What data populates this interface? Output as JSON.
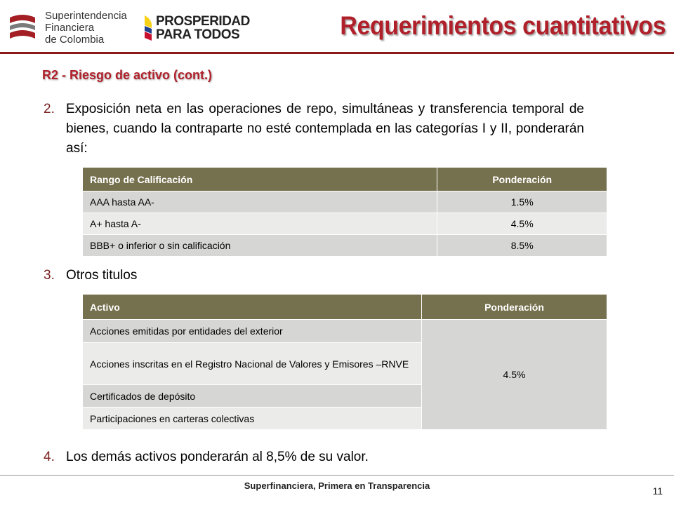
{
  "header": {
    "sfc_logo_text": [
      "Superintendencia",
      "Financiera",
      "de Colombia"
    ],
    "prosperidad_text": [
      "PROSPERIDAD",
      "PARA TODOS"
    ],
    "title": "Requerimientos cuantitativos",
    "colors": {
      "title": "#b0202a",
      "rule": "#8b1a1a",
      "table_header": "#75704d"
    }
  },
  "subtitle": "R2 - Riesgo de activo (cont.)",
  "items": [
    {
      "num": "2.",
      "text": "Exposición neta en las operaciones de repo, simultáneas y transferencia temporal de bienes, cuando la contraparte no esté contemplada en las categorías I y II, ponderarán así:"
    },
    {
      "num": "3.",
      "text": "Otros titulos"
    },
    {
      "num": "4.",
      "text": "Los demás activos ponderarán al 8,5% de su valor."
    }
  ],
  "table_rating": {
    "headers": [
      "Rango de Calificación",
      "Ponderación"
    ],
    "rows": [
      [
        "AAA hasta AA-",
        "1.5%"
      ],
      [
        "A+ hasta A-",
        "4.5%"
      ],
      [
        "BBB+ o inferior o sin calificación",
        "8.5%"
      ]
    ]
  },
  "table_assets": {
    "headers": [
      "Activo",
      "Ponderación"
    ],
    "assets": [
      "Acciones emitidas por entidades del exterior",
      "Acciones inscritas en el Registro Nacional de Valores y Emisores –RNVE",
      "Certificados de depósito",
      "Participaciones en carteras colectivas"
    ],
    "weight": "4.5%"
  },
  "footer": {
    "text": "Superfinanciera, Primera en Transparencia",
    "page": "11"
  }
}
